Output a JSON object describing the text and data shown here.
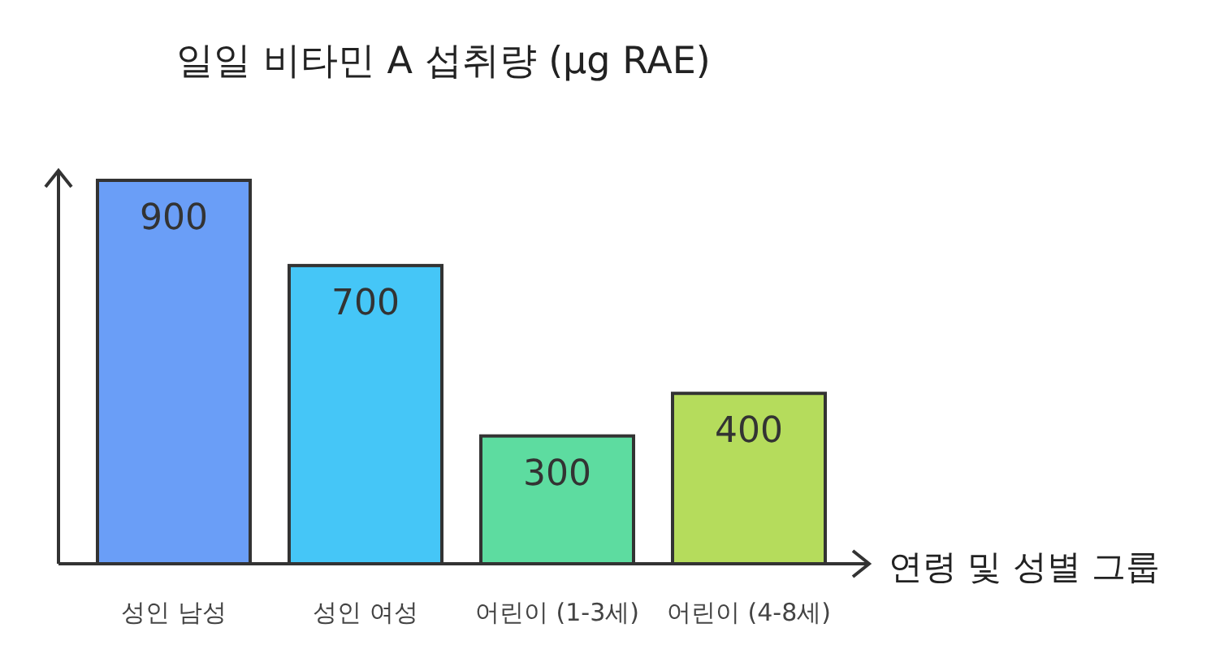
{
  "chart_data": {
    "type": "bar",
    "title": "일일 비타민 A 섭취량 (µg RAE)",
    "xlabel": "연령 및 성별 그룹",
    "categories": [
      "성인 남성",
      "성인 여성",
      "어린이 (1-3세)",
      "어린이 (4-8세)"
    ],
    "values": [
      900,
      700,
      300,
      400
    ],
    "colors": [
      "#6a9ef7",
      "#45c6f7",
      "#5ddca0",
      "#b5dc5c"
    ],
    "data_labels": true
  }
}
